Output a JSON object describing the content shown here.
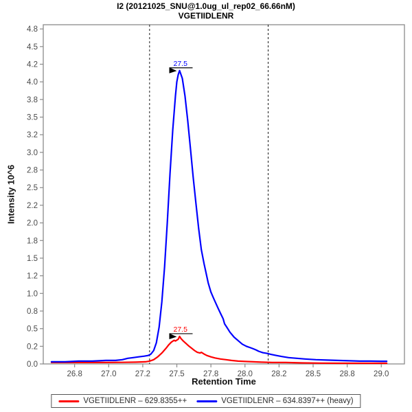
{
  "chart_data": {
    "type": "line",
    "title": "I2 (20121025_SNU@1.0ug_ul_rep02_66.66nM)",
    "subtitle": "VGETIIDLENR",
    "xlabel": "Retention Time",
    "ylabel": "Intensity 10^6",
    "xlim": [
      26.52,
      29.17
    ],
    "ylim": [
      0,
      4.81
    ],
    "grid": false,
    "legend_position": "bottom",
    "axis_color": "#8a8a8a",
    "tick_label_color": "#4a4a4a",
    "x_ticks": [
      {
        "v": 26.75,
        "label": "26.8"
      },
      {
        "v": 27.0,
        "label": "27.0"
      },
      {
        "v": 27.25,
        "label": "27.2"
      },
      {
        "v": 27.5,
        "label": "27.5"
      },
      {
        "v": 27.75,
        "label": "27.8"
      },
      {
        "v": 28.0,
        "label": "28.0"
      },
      {
        "v": 28.25,
        "label": "28.2"
      },
      {
        "v": 28.5,
        "label": "28.5"
      },
      {
        "v": 28.75,
        "label": "28.8"
      },
      {
        "v": 29.0,
        "label": "29.0"
      }
    ],
    "y_ticks": [
      {
        "v": 0.0,
        "label": "0.0"
      },
      {
        "v": 0.25,
        "label": "0.2"
      },
      {
        "v": 0.5,
        "label": "0.5"
      },
      {
        "v": 0.75,
        "label": "0.8"
      },
      {
        "v": 1.0,
        "label": "1.0"
      },
      {
        "v": 1.25,
        "label": "1.2"
      },
      {
        "v": 1.5,
        "label": "1.5"
      },
      {
        "v": 1.75,
        "label": "1.8"
      },
      {
        "v": 2.0,
        "label": "2.0"
      },
      {
        "v": 2.25,
        "label": "2.2"
      },
      {
        "v": 2.5,
        "label": "2.5"
      },
      {
        "v": 2.75,
        "label": "2.8"
      },
      {
        "v": 3.0,
        "label": "3.0"
      },
      {
        "v": 3.25,
        "label": "3.2"
      },
      {
        "v": 3.5,
        "label": "3.5"
      },
      {
        "v": 3.75,
        "label": "3.8"
      },
      {
        "v": 4.0,
        "label": "4.0"
      },
      {
        "v": 4.25,
        "label": "4.2"
      },
      {
        "v": 4.5,
        "label": "4.5"
      },
      {
        "v": 4.75,
        "label": "4.8"
      }
    ],
    "peak_boundaries": {
      "style": "dashed",
      "color": "#1a1a1a",
      "x": [
        27.3,
        28.17
      ]
    },
    "series": [
      {
        "name": "VGETIIDLENR – 629.8355++",
        "color": "#ff0000",
        "peak_annotation": {
          "label": "27.5",
          "rt": 27.52,
          "intensity": 0.39
        },
        "points": [
          [
            26.58,
            0.02
          ],
          [
            26.75,
            0.02
          ],
          [
            26.95,
            0.02
          ],
          [
            27.1,
            0.022
          ],
          [
            27.2,
            0.025
          ],
          [
            27.27,
            0.03
          ],
          [
            27.3,
            0.04
          ],
          [
            27.33,
            0.06
          ],
          [
            27.36,
            0.1
          ],
          [
            27.39,
            0.155
          ],
          [
            27.42,
            0.22
          ],
          [
            27.44,
            0.27
          ],
          [
            27.46,
            0.31
          ],
          [
            27.48,
            0.335
          ],
          [
            27.49,
            0.325
          ],
          [
            27.51,
            0.35
          ],
          [
            27.52,
            0.39
          ],
          [
            27.53,
            0.36
          ],
          [
            27.55,
            0.32
          ],
          [
            27.57,
            0.285
          ],
          [
            27.59,
            0.25
          ],
          [
            27.61,
            0.22
          ],
          [
            27.63,
            0.19
          ],
          [
            27.65,
            0.165
          ],
          [
            27.67,
            0.155
          ],
          [
            27.68,
            0.165
          ],
          [
            27.7,
            0.14
          ],
          [
            27.72,
            0.12
          ],
          [
            27.75,
            0.1
          ],
          [
            27.78,
            0.085
          ],
          [
            27.82,
            0.07
          ],
          [
            27.86,
            0.06
          ],
          [
            27.9,
            0.05
          ],
          [
            27.95,
            0.04
          ],
          [
            28.0,
            0.035
          ],
          [
            28.06,
            0.03
          ],
          [
            28.12,
            0.025
          ],
          [
            28.2,
            0.02
          ],
          [
            28.3,
            0.02
          ],
          [
            28.42,
            0.015
          ],
          [
            28.55,
            0.012
          ],
          [
            28.7,
            0.01
          ],
          [
            28.85,
            0.01
          ],
          [
            29.0,
            0.01
          ],
          [
            29.04,
            0.01
          ]
        ]
      },
      {
        "name": "VGETIIDLENR – 634.8397++ (heavy)",
        "color": "#0000ff",
        "peak_annotation": {
          "label": "27.5",
          "rt": 27.52,
          "intensity": 4.16
        },
        "points": [
          [
            26.58,
            0.03
          ],
          [
            26.68,
            0.03
          ],
          [
            26.78,
            0.04
          ],
          [
            26.88,
            0.04
          ],
          [
            26.98,
            0.05
          ],
          [
            27.05,
            0.05
          ],
          [
            27.1,
            0.06
          ],
          [
            27.14,
            0.08
          ],
          [
            27.18,
            0.09
          ],
          [
            27.22,
            0.1
          ],
          [
            27.26,
            0.11
          ],
          [
            27.29,
            0.12
          ],
          [
            27.31,
            0.14
          ],
          [
            27.33,
            0.19
          ],
          [
            27.35,
            0.3
          ],
          [
            27.37,
            0.52
          ],
          [
            27.39,
            0.88
          ],
          [
            27.41,
            1.38
          ],
          [
            27.43,
            2.0
          ],
          [
            27.45,
            2.7
          ],
          [
            27.47,
            3.32
          ],
          [
            27.49,
            3.8
          ],
          [
            27.5,
            4.0
          ],
          [
            27.51,
            4.1
          ],
          [
            27.52,
            4.16
          ],
          [
            27.54,
            4.05
          ],
          [
            27.56,
            3.8
          ],
          [
            27.58,
            3.45
          ],
          [
            27.6,
            3.05
          ],
          [
            27.62,
            2.65
          ],
          [
            27.64,
            2.28
          ],
          [
            27.66,
            1.92
          ],
          [
            27.68,
            1.62
          ],
          [
            27.7,
            1.42
          ],
          [
            27.71,
            1.33
          ],
          [
            27.73,
            1.15
          ],
          [
            27.75,
            1.02
          ],
          [
            27.77,
            0.93
          ],
          [
            27.8,
            0.8
          ],
          [
            27.82,
            0.72
          ],
          [
            27.84,
            0.64
          ],
          [
            27.85,
            0.57
          ],
          [
            27.87,
            0.51
          ],
          [
            27.89,
            0.45
          ],
          [
            27.92,
            0.38
          ],
          [
            27.95,
            0.33
          ],
          [
            27.98,
            0.28
          ],
          [
            28.01,
            0.25
          ],
          [
            28.04,
            0.23
          ],
          [
            28.06,
            0.215
          ],
          [
            28.08,
            0.2
          ],
          [
            28.1,
            0.18
          ],
          [
            28.13,
            0.16
          ],
          [
            28.16,
            0.15
          ],
          [
            28.19,
            0.135
          ],
          [
            28.23,
            0.12
          ],
          [
            28.27,
            0.105
          ],
          [
            28.32,
            0.09
          ],
          [
            28.38,
            0.08
          ],
          [
            28.44,
            0.07
          ],
          [
            28.52,
            0.06
          ],
          [
            28.6,
            0.055
          ],
          [
            28.68,
            0.05
          ],
          [
            28.76,
            0.045
          ],
          [
            28.84,
            0.04
          ],
          [
            28.92,
            0.04
          ],
          [
            29.0,
            0.038
          ],
          [
            29.04,
            0.038
          ]
        ]
      }
    ]
  }
}
